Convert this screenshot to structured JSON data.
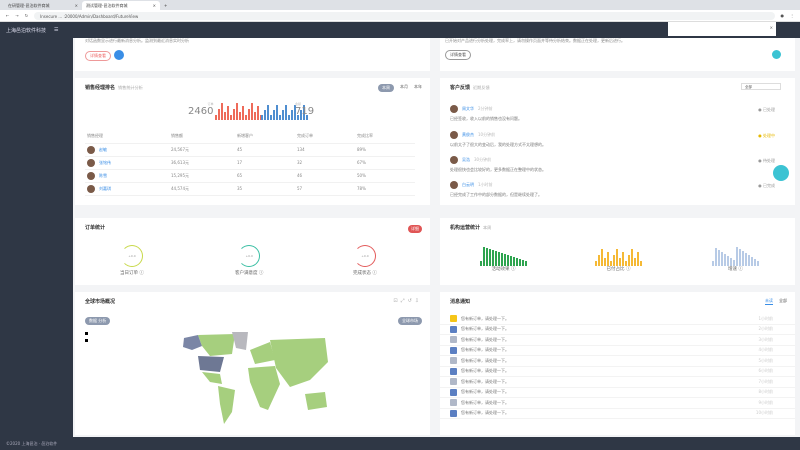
{
  "browser": {
    "tabs": [
      {
        "label": "在研管理-邑泊软件商城"
      },
      {
        "label": "测试管理-邑泊软件商城"
      }
    ],
    "url": "Insecure  ... :20000/Admin/Dashboard/FutureView"
  },
  "app": {
    "brand": "上海邑泊软件科技",
    "footer": "©2020 上海邑泊 · 邑泊软件"
  },
  "row1": {
    "left_text": "对话函数显示进行最新消息分析。监测到最近消息实时分析",
    "left_button": "详情查看",
    "right_text": "已开始对产品进行分析处理，完成率上，请勿操作页面并等待分析结束。数据正在处理，更新后进行。",
    "right_button": "详情查看"
  },
  "sales": {
    "title": "销售经理排名",
    "subtitle": "销售统计分析",
    "tabs": [
      "本周",
      "本月",
      "本年"
    ],
    "stat1_label": "订单",
    "stat1": "2460",
    "stat2_label": "金额",
    "stat2": "719",
    "columns": [
      "销售经理",
      "销售额",
      "新增客户",
      "完成订单",
      "完成比率"
    ],
    "rows": [
      [
        "赵敏",
        "24,567元",
        "45",
        "134",
        "89%"
      ],
      [
        "张铭伟",
        "36,613元",
        "17",
        "32",
        "67%"
      ],
      [
        "陈雪",
        "15,295元",
        "65",
        "46",
        "50%"
      ],
      [
        "刘嘉琪",
        "44,574元",
        "35",
        "57",
        "78%"
      ]
    ]
  },
  "feedback": {
    "title": "客户反馈",
    "subtitle": "近期反馈",
    "filter": "全部",
    "items": [
      {
        "name": "周文华",
        "time": "2分钟前",
        "text": "已经签收，收入以前的销售也没有问题。",
        "status": "● 已处理"
      },
      {
        "name": "黄俊杰",
        "time": "10分钟前",
        "text": "以前太子了很大的变动后，我的处理方式不太理想的。",
        "status": "● 处理中"
      },
      {
        "name": "吴浩",
        "time": "30分钟前",
        "text": "处理很快也会比较好的，更多数据正在整理中的状态。",
        "status": "● 待处理"
      },
      {
        "name": "白云明",
        "time": "1小时前",
        "text": "已经完成了工作中的部分数据的，但是继续处理了。",
        "status": "● 已完成"
      }
    ]
  },
  "orders": {
    "title": "订单统计",
    "badge": "详细",
    "gauges": [
      {
        "label": "当日订单 ⓘ",
        "value": "+0.0",
        "color": "#c8d94a"
      },
      {
        "label": "客户满意度 ⓘ",
        "value": "+0.0",
        "color": "#3bbfa4"
      },
      {
        "label": "完成状态 ⓘ",
        "value": "+0.0",
        "color": "#e35b5b"
      }
    ]
  },
  "ops": {
    "title": "机构运营统计",
    "subtitle": "本周",
    "charts": [
      {
        "label": "活动效果 ⓘ",
        "color": "#2ea44f"
      },
      {
        "label": "已付占比 ⓘ",
        "color": "#f5b935"
      },
      {
        "label": "增速 ⓘ",
        "color": "#b8cbe6"
      }
    ]
  },
  "map": {
    "title": "全球市场概况",
    "legend_tabs": [
      "数据",
      "分析"
    ],
    "right_pill": "全球市场"
  },
  "messages": {
    "title": "消息通知",
    "tabs": [
      "未读",
      "全部"
    ],
    "items": [
      {
        "text": "您有新订单，请处理一下。",
        "time": "1小时前",
        "icon": "#f5c518"
      },
      {
        "text": "您有新订单，请处理一下。",
        "time": "2小时前",
        "icon": "#5b7fc2"
      },
      {
        "text": "您有新订单，请处理一下。",
        "time": "3小时前",
        "icon": "#b0b8c8"
      },
      {
        "text": "您有新订单，请处理一下。",
        "time": "4小时前",
        "icon": "#5b7fc2"
      },
      {
        "text": "您有新订单，请处理一下。",
        "time": "5小时前",
        "icon": "#b0b8c8"
      },
      {
        "text": "您有新订单，请处理一下。",
        "time": "6小时前",
        "icon": "#5b7fc2"
      },
      {
        "text": "您有新订单，请处理一下。",
        "time": "7小时前",
        "icon": "#b0b8c8"
      },
      {
        "text": "您有新订单，请处理一下。",
        "time": "8小时前",
        "icon": "#5b7fc2"
      },
      {
        "text": "您有新订单，请处理一下。",
        "time": "9小时前",
        "icon": "#b0b8c8"
      },
      {
        "text": "您有新订单，请处理一下。",
        "time": "10小时前",
        "icon": "#5b7fc2"
      }
    ]
  }
}
